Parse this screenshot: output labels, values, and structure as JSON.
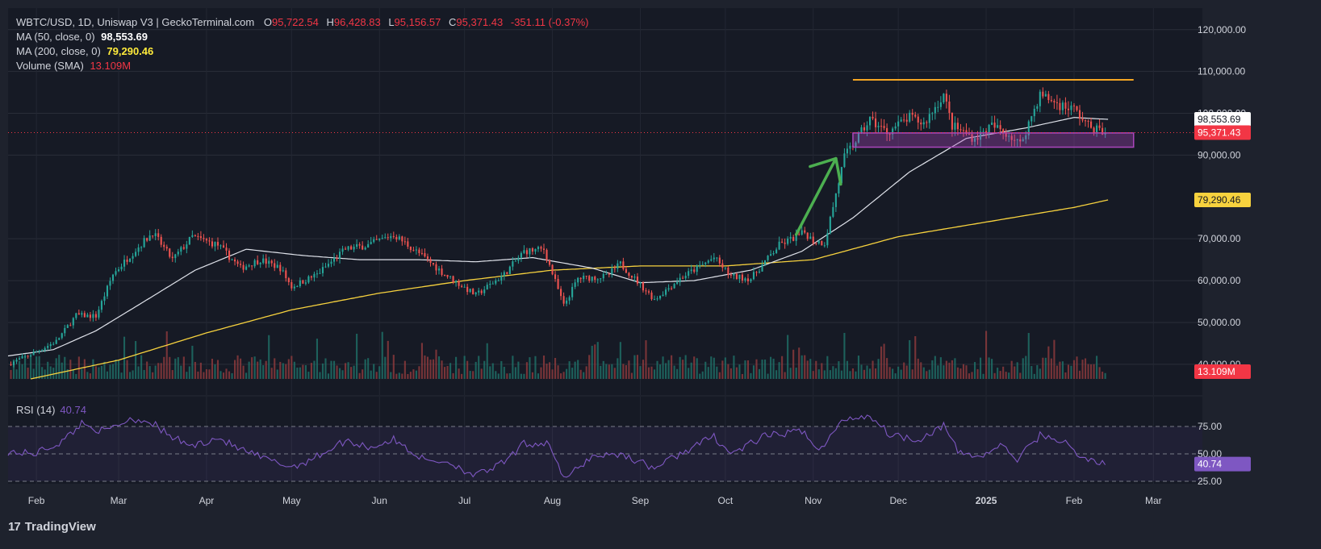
{
  "header": {
    "symbol": "WBTC/USD, 1D, Uniswap V3 | GeckoTerminal.com",
    "open_label": "O",
    "open": "95,722.54",
    "high_label": "H",
    "high": "96,428.83",
    "low_label": "L",
    "low": "95,156.57",
    "close_label": "C",
    "close": "95,371.43",
    "change": "-351.11 (-0.37%)"
  },
  "indicators": {
    "ma50_label": "MA (50, close, 0)",
    "ma50_value": "98,553.69",
    "ma200_label": "MA (200, close, 0)",
    "ma200_value": "79,290.46",
    "volume_label": "Volume (SMA)",
    "volume_value": "13.109M",
    "rsi_label": "RSI (14)",
    "rsi_value": "40.74"
  },
  "price_tags": {
    "ma50": "98,553.69",
    "last": "95,371.43",
    "ma200": "79,290.46",
    "volume": "13.109M",
    "rsi": "40.74"
  },
  "footer": {
    "brand": "TradingView",
    "logo": "17"
  },
  "colors": {
    "background": "#1e222d",
    "up": "#26a69a",
    "down": "#ef5350",
    "ma50": "#e0e3eb",
    "ma200": "#f7d23e",
    "rsi": "#7e57c2",
    "resistance": "#f5a623",
    "support_box": "#ab47bc",
    "arrow": "#4caf50"
  },
  "chart_data": {
    "type": "candlestick",
    "y_ticks": [
      "120,000.00",
      "110,000.00",
      "100,000.00",
      "90,000.00",
      "70,000.00",
      "60,000.00",
      "50,000.00",
      "40,000.00"
    ],
    "ylim": [
      36500,
      124000
    ],
    "x_labels": [
      "Feb",
      "Mar",
      "Apr",
      "May",
      "Jun",
      "Jul",
      "Aug",
      "Sep",
      "Oct",
      "Nov",
      "Dec",
      "2025",
      "Feb",
      "Mar"
    ],
    "x_label_dates": [
      "2024-02-01",
      "2024-03-01",
      "2024-04-01",
      "2024-05-01",
      "2024-06-01",
      "2024-07-01",
      "2024-08-01",
      "2024-09-01",
      "2024-10-01",
      "2024-11-01",
      "2024-12-01",
      "2025-01-01",
      "2025-02-01",
      "2025-03-01"
    ],
    "x_range": [
      "2024-01-22",
      "2025-03-12"
    ],
    "close_series": {
      "dates": [
        "2024-01-22",
        "2024-02-01",
        "2024-02-08",
        "2024-02-15",
        "2024-02-22",
        "2024-02-28",
        "2024-03-05",
        "2024-03-13",
        "2024-03-20",
        "2024-03-27",
        "2024-04-05",
        "2024-04-13",
        "2024-04-20",
        "2024-04-27",
        "2024-05-01",
        "2024-05-10",
        "2024-05-20",
        "2024-05-28",
        "2024-06-06",
        "2024-06-15",
        "2024-06-24",
        "2024-07-05",
        "2024-07-15",
        "2024-07-22",
        "2024-07-29",
        "2024-08-05",
        "2024-08-10",
        "2024-08-20",
        "2024-08-25",
        "2024-09-06",
        "2024-09-15",
        "2024-09-27",
        "2024-10-03",
        "2024-10-10",
        "2024-10-20",
        "2024-10-29",
        "2024-11-01",
        "2024-11-05",
        "2024-11-12",
        "2024-11-21",
        "2024-11-27",
        "2024-12-05",
        "2024-12-10",
        "2024-12-17",
        "2024-12-20",
        "2024-12-28",
        "2025-01-03",
        "2025-01-09",
        "2025-01-13",
        "2025-01-20",
        "2025-01-27",
        "2025-02-01",
        "2025-02-06",
        "2025-02-12"
      ],
      "values": [
        40000,
        43000,
        45500,
        51700,
        51500,
        61500,
        66000,
        71500,
        65000,
        70500,
        68500,
        63000,
        65000,
        63000,
        58500,
        61500,
        67500,
        68500,
        71000,
        66500,
        61500,
        56500,
        61500,
        67000,
        67500,
        54000,
        60500,
        61000,
        64000,
        55500,
        60500,
        65500,
        61000,
        60500,
        68500,
        71500,
        69500,
        69000,
        89500,
        98500,
        95500,
        99000,
        97500,
        104500,
        97000,
        94000,
        97000,
        95000,
        92500,
        104500,
        102000,
        101000,
        97000,
        95371
      ]
    },
    "ma50": {
      "dates": [
        "2024-01-22",
        "2024-02-07",
        "2024-02-22",
        "2024-03-10",
        "2024-03-28",
        "2024-04-15",
        "2024-05-05",
        "2024-05-25",
        "2024-06-15",
        "2024-07-05",
        "2024-07-25",
        "2024-08-15",
        "2024-09-01",
        "2024-09-20",
        "2024-10-10",
        "2024-10-28",
        "2024-11-15",
        "2024-12-05",
        "2024-12-25",
        "2025-01-15",
        "2025-02-01",
        "2025-02-13"
      ],
      "values": [
        42000,
        43500,
        48000,
        55000,
        62500,
        67500,
        66000,
        65000,
        65000,
        64500,
        65500,
        63000,
        59500,
        60000,
        62500,
        67000,
        75000,
        86000,
        94000,
        96500,
        99000,
        98553
      ]
    },
    "ma200": {
      "dates": [
        "2024-01-30",
        "2024-03-01",
        "2024-04-01",
        "2024-05-01",
        "2024-06-01",
        "2024-07-01",
        "2024-08-01",
        "2024-09-01",
        "2024-10-01",
        "2024-11-01",
        "2024-12-01",
        "2025-01-01",
        "2025-02-01",
        "2025-02-13"
      ],
      "values": [
        36500,
        41000,
        47500,
        53000,
        57000,
        60000,
        62500,
        63500,
        63500,
        65000,
        70500,
        74000,
        77500,
        79290
      ]
    },
    "resistance_line": {
      "start": "2024-11-15",
      "end": "2025-02-22",
      "value": 108000
    },
    "support_box": {
      "start": "2024-11-15",
      "end": "2025-02-22",
      "low": 91900,
      "high": 95300
    },
    "arrow": {
      "from": [
        "2024-10-26",
        71000
      ],
      "to": [
        "2024-11-09",
        89200
      ]
    },
    "last_price": 95371.43,
    "rsi": {
      "levels": [
        75,
        50,
        25
      ],
      "ylim": [
        20,
        90
      ],
      "y_ticks": [
        "75.00",
        "50.00",
        "25.00"
      ],
      "dates": [
        "2024-01-22",
        "2024-01-31",
        "2024-02-10",
        "2024-02-17",
        "2024-02-25",
        "2024-03-05",
        "2024-03-12",
        "2024-03-19",
        "2024-03-27",
        "2024-04-05",
        "2024-04-12",
        "2024-04-22",
        "2024-05-01",
        "2024-05-08",
        "2024-05-20",
        "2024-05-29",
        "2024-06-06",
        "2024-06-17",
        "2024-06-25",
        "2024-07-05",
        "2024-07-15",
        "2024-07-22",
        "2024-07-31",
        "2024-08-05",
        "2024-08-15",
        "2024-08-25",
        "2024-09-06",
        "2024-09-15",
        "2024-09-27",
        "2024-10-03",
        "2024-10-15",
        "2024-10-29",
        "2024-11-03",
        "2024-11-12",
        "2024-11-21",
        "2024-11-28",
        "2024-12-08",
        "2024-12-17",
        "2024-12-22",
        "2024-12-30",
        "2025-01-06",
        "2025-01-12",
        "2025-01-20",
        "2025-01-28",
        "2025-02-03",
        "2025-02-12"
      ],
      "values": [
        52,
        50,
        61,
        78,
        70,
        82,
        80,
        66,
        57,
        65,
        55,
        45,
        38,
        45,
        62,
        56,
        63,
        44,
        43,
        30,
        42,
        59,
        60,
        26,
        48,
        50,
        37,
        50,
        66,
        50,
        66,
        71,
        52,
        82,
        85,
        68,
        63,
        76,
        52,
        47,
        58,
        45,
        67,
        62,
        47,
        41
      ]
    },
    "volume_note": "volume bars at bottom of price pane"
  }
}
